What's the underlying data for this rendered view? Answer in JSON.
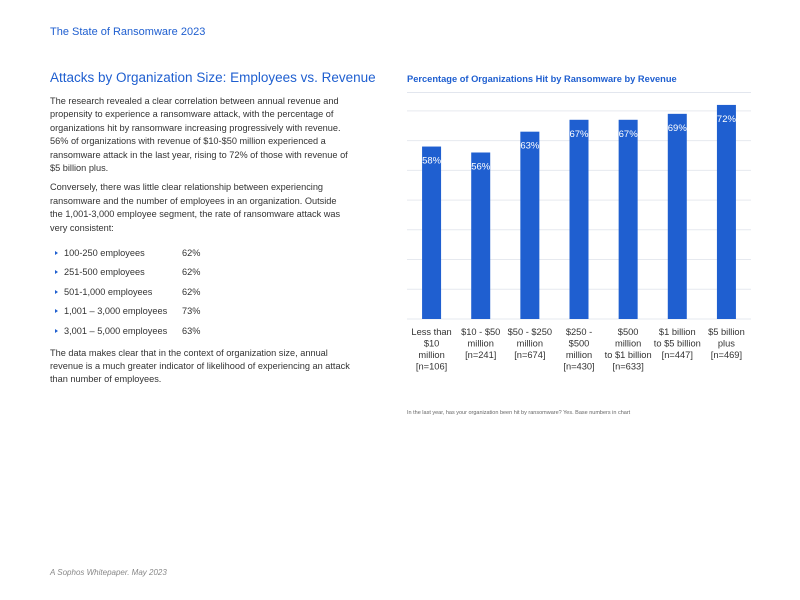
{
  "header": {
    "title": "The State of Ransomware 2023"
  },
  "section": {
    "title": "Attacks by Organization Size: Employees vs. Revenue",
    "para1": "The research revealed a clear correlation between annual revenue and propensity to experience a ransomware attack, with the percentage of organizations hit by ransomware increasing progressively with revenue. 56% of organizations with revenue of $10-$50 million experienced a ransomware attack in the last year, rising to 72% of those with revenue of $5 billion plus.",
    "para2": "Conversely, there was little clear relationship between experiencing ransomware and the number of employees in an organization. Outside the 1,001-3,000 employee segment, the rate of ransomware attack was very consistent:",
    "employees": [
      {
        "label": "100-250 employees",
        "value": "62%"
      },
      {
        "label": "251-500 employees",
        "value": "62%"
      },
      {
        "label": "501-1,000 employees",
        "value": "62%"
      },
      {
        "label": "1,001 – 3,000 employees",
        "value": "73%"
      },
      {
        "label": "3,001 – 5,000 employees",
        "value": "63%"
      }
    ],
    "para3": "The data makes clear that in the context of organization size, annual revenue is a much greater indicator of likelihood of experiencing an attack than number of employees."
  },
  "chart_data": {
    "type": "bar",
    "title": "Percentage of Organizations Hit by Ransomware by Revenue",
    "categories": [
      [
        "Less than",
        "$10",
        "million",
        "[n=106]"
      ],
      [
        "$10 - $50",
        "million",
        "[n=241]"
      ],
      [
        "$50 - $250",
        "million",
        "[n=674]"
      ],
      [
        "$250 -",
        "$500",
        "million",
        "[n=430]"
      ],
      [
        "$500",
        "million",
        "to $1 billion",
        "[n=633]"
      ],
      [
        "$1 billion",
        "to $5 billion",
        "[n=447]"
      ],
      [
        "$5 billion",
        "plus",
        "[n=469]"
      ]
    ],
    "values": [
      58,
      56,
      63,
      67,
      67,
      69,
      72
    ],
    "value_labels": [
      "58%",
      "56%",
      "63%",
      "67%",
      "67%",
      "69%",
      "72%"
    ],
    "ylim": [
      0,
      75
    ],
    "grid": true,
    "bar_color": "#1f5fd0",
    "gridline_color": "#e6e9ef",
    "label_color": "#ffffff"
  },
  "footnote": "In the last year, has your organization been hit by ransomware? Yes. Base numbers in chart",
  "footer": {
    "text": "A Sophos Whitepaper. May 2023"
  }
}
